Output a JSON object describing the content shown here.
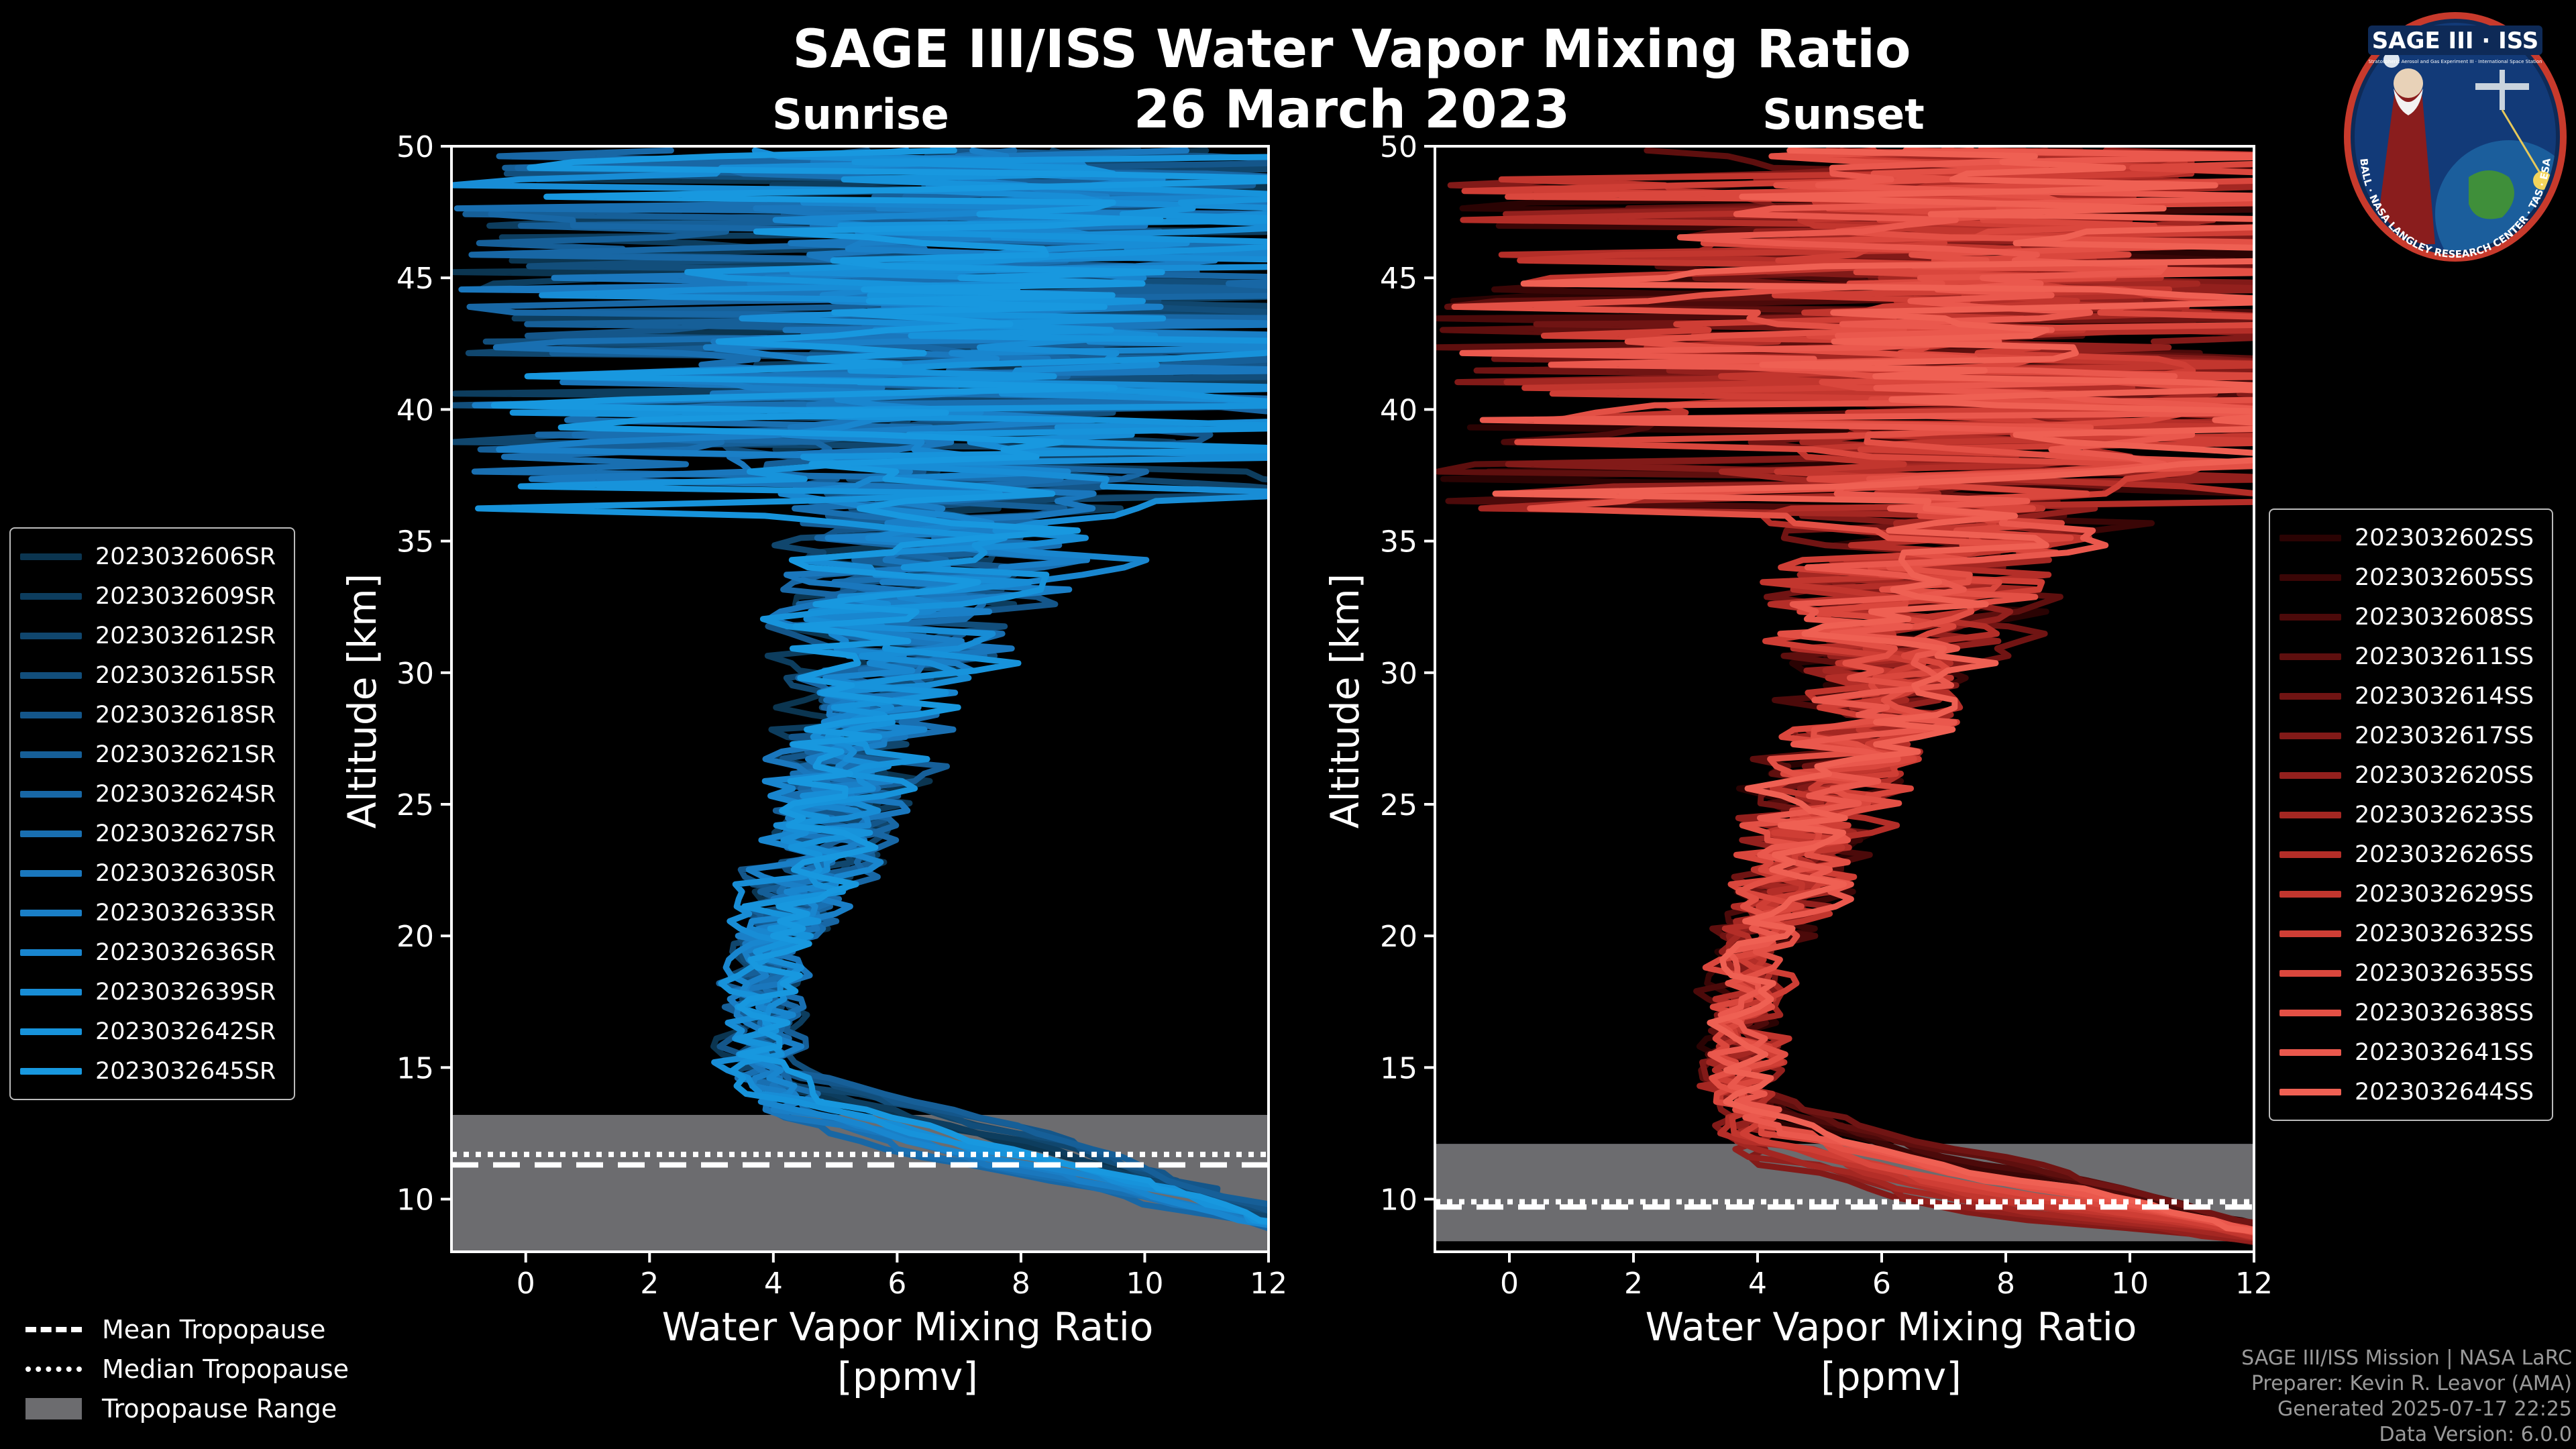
{
  "figure": {
    "title": "SAGE III/ISS Water Vapor Mixing Ratio",
    "date": "26 March 2023"
  },
  "chart_data": [
    {
      "type": "line",
      "panel": "sunrise",
      "title": "Sunrise",
      "xlabel_line1": "Water Vapor Mixing Ratio",
      "xlabel_line2": "[ppmv]",
      "ylabel": "Altitude [km]",
      "xlim": [
        -1.2,
        12
      ],
      "ylim": [
        8,
        50
      ],
      "xticks": [
        0,
        2,
        4,
        6,
        8,
        10,
        12
      ],
      "yticks": [
        10,
        15,
        20,
        25,
        30,
        35,
        40,
        45,
        50
      ],
      "tropopause": {
        "mean": 11.3,
        "median": 11.7,
        "range": [
          8,
          13.2
        ]
      },
      "series": [
        {
          "name": "2023032606SR",
          "color": "#0b3550"
        },
        {
          "name": "2023032609SR",
          "color": "#0d3d5e"
        },
        {
          "name": "2023032612SR",
          "color": "#10466d"
        },
        {
          "name": "2023032615SR",
          "color": "#124e7b"
        },
        {
          "name": "2023032618SR",
          "color": "#14568a"
        },
        {
          "name": "2023032621SR",
          "color": "#165f98"
        },
        {
          "name": "2023032624SR",
          "color": "#1867a5"
        },
        {
          "name": "2023032627SR",
          "color": "#196fb1"
        },
        {
          "name": "2023032630SR",
          "color": "#1a77bd"
        },
        {
          "name": "2023032633SR",
          "color": "#1a7fc7"
        },
        {
          "name": "2023032636SR",
          "color": "#1986cf"
        },
        {
          "name": "2023032639SR",
          "color": "#188dd6"
        },
        {
          "name": "2023032642SR",
          "color": "#1793db"
        },
        {
          "name": "2023032645SR",
          "color": "#1898df"
        }
      ]
    },
    {
      "type": "line",
      "panel": "sunset",
      "title": "Sunset",
      "xlabel_line1": "Water Vapor Mixing Ratio",
      "xlabel_line2": "[ppmv]",
      "ylabel": "Altitude [km]",
      "xlim": [
        -1.2,
        12
      ],
      "ylim": [
        8,
        50
      ],
      "xticks": [
        0,
        2,
        4,
        6,
        8,
        10,
        12
      ],
      "yticks": [
        10,
        15,
        20,
        25,
        30,
        35,
        40,
        45,
        50
      ],
      "tropopause": {
        "mean": 9.7,
        "median": 9.9,
        "range": [
          8.4,
          12.1
        ]
      },
      "series": [
        {
          "name": "2023032602SS",
          "color": "#2a0303"
        },
        {
          "name": "2023032605SS",
          "color": "#3a0606"
        },
        {
          "name": "2023032608SS",
          "color": "#4c0a0a"
        },
        {
          "name": "2023032611SS",
          "color": "#5e0f0e"
        },
        {
          "name": "2023032614SS",
          "color": "#701413"
        },
        {
          "name": "2023032617SS",
          "color": "#821a18"
        },
        {
          "name": "2023032620SS",
          "color": "#93201d"
        },
        {
          "name": "2023032623SS",
          "color": "#a42722"
        },
        {
          "name": "2023032626SS",
          "color": "#b42e28"
        },
        {
          "name": "2023032629SS",
          "color": "#c2362e"
        },
        {
          "name": "2023032632SS",
          "color": "#cf3e35"
        },
        {
          "name": "2023032635SS",
          "color": "#da473d"
        },
        {
          "name": "2023032638SS",
          "color": "#e35045"
        },
        {
          "name": "2023032641SS",
          "color": "#ea584d"
        },
        {
          "name": "2023032644SS",
          "color": "#ef6053"
        }
      ]
    }
  ],
  "legend_tropopause": {
    "mean_label": "Mean Tropopause",
    "median_label": "Median Tropopause",
    "range_label": "Tropopause Range"
  },
  "credits": {
    "line1": "SAGE III/ISS Mission | NASA LaRC",
    "line2": "Preparer: Kevin R. Leavor (AMA)",
    "line3": "Generated 2025-07-17 22:25",
    "line4": "Data Version: 6.0.0"
  },
  "logo": {
    "name": "SAGE III · ISS",
    "subtitle": "Stratospheric Aerosol and Gas Experiment III · International Space Station",
    "ring_text": "BALL · NASA LANGLEY RESEARCH CENTER · TAS · ESA"
  }
}
